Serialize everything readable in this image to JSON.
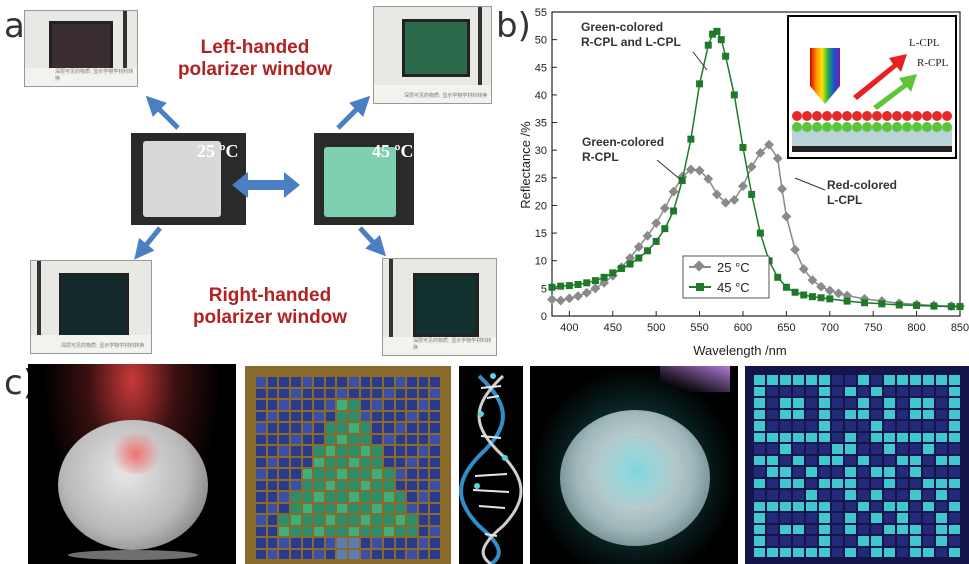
{
  "panel_a": {
    "letter": "a)",
    "left_label_line1": "Left-handed",
    "left_label_line2": "polarizer window",
    "right_label_line1": "Right-handed",
    "right_label_line2": "polarizer window",
    "temp_25": "25 ºC",
    "temp_45": "45 ºC",
    "caption_text": "深层可见的物质: 显示学物学材料转换"
  },
  "panel_b": {
    "letter": "b)",
    "annotation_green_both_line1": "Green-colored",
    "annotation_green_both_line2": "R-CPL and L-CPL",
    "annotation_green_r_line1": "Green-colored",
    "annotation_green_r_line2": "R-CPL",
    "annotation_red_l_line1": "Red-colored",
    "annotation_red_l_line2": "L-CPL",
    "inset_l_cpl": "L-CPL",
    "inset_r_cpl": "R-CPL"
  },
  "panel_c": {
    "letter": "c)"
  },
  "colors": {
    "series_25": "#8a8a8a",
    "series_45": "#1e7a2a",
    "arrow_blue": "#4a7fc4",
    "label_red": "#b22222"
  },
  "chart_data": {
    "type": "line",
    "xlabel": "Wavelength /nm",
    "ylabel": "Reflectance /%",
    "xlim": [
      380,
      850
    ],
    "ylim": [
      0,
      55
    ],
    "xticks": [
      400,
      450,
      500,
      550,
      600,
      650,
      700,
      750,
      800,
      850
    ],
    "yticks": [
      0,
      5,
      10,
      15,
      20,
      25,
      30,
      35,
      40,
      45,
      50,
      55
    ],
    "legend_position": "bottom-left",
    "grid": false,
    "series": [
      {
        "name": "25 °C",
        "marker": "diamond",
        "points": [
          [
            380,
            3
          ],
          [
            390,
            2.8
          ],
          [
            400,
            3.2
          ],
          [
            410,
            3.6
          ],
          [
            420,
            4.2
          ],
          [
            430,
            5
          ],
          [
            440,
            6
          ],
          [
            450,
            7.3
          ],
          [
            460,
            8.8
          ],
          [
            470,
            10.5
          ],
          [
            480,
            12.5
          ],
          [
            490,
            14.5
          ],
          [
            500,
            16.8
          ],
          [
            510,
            19.5
          ],
          [
            520,
            22.5
          ],
          [
            530,
            25.2
          ],
          [
            540,
            26.5
          ],
          [
            550,
            26.3
          ],
          [
            560,
            24.8
          ],
          [
            570,
            22
          ],
          [
            580,
            20.5
          ],
          [
            590,
            21
          ],
          [
            600,
            23.5
          ],
          [
            610,
            27
          ],
          [
            620,
            29.5
          ],
          [
            630,
            31
          ],
          [
            640,
            28.5
          ],
          [
            645,
            23
          ],
          [
            650,
            18
          ],
          [
            660,
            12
          ],
          [
            670,
            8.5
          ],
          [
            680,
            6.5
          ],
          [
            690,
            5.3
          ],
          [
            700,
            4.6
          ],
          [
            710,
            4.1
          ],
          [
            720,
            3.7
          ],
          [
            740,
            3.1
          ],
          [
            760,
            2.7
          ],
          [
            780,
            2.3
          ],
          [
            800,
            2.1
          ],
          [
            820,
            1.9
          ],
          [
            840,
            1.8
          ],
          [
            850,
            1.8
          ]
        ]
      },
      {
        "name": "45 °C",
        "marker": "square",
        "points": [
          [
            380,
            5.2
          ],
          [
            390,
            5.4
          ],
          [
            400,
            5.5
          ],
          [
            410,
            5.7
          ],
          [
            420,
            6
          ],
          [
            430,
            6.4
          ],
          [
            440,
            7
          ],
          [
            450,
            7.8
          ],
          [
            460,
            8.6
          ],
          [
            470,
            9.4
          ],
          [
            480,
            10.5
          ],
          [
            490,
            11.8
          ],
          [
            500,
            13.5
          ],
          [
            510,
            15.8
          ],
          [
            520,
            19
          ],
          [
            530,
            24.5
          ],
          [
            540,
            32
          ],
          [
            550,
            42
          ],
          [
            560,
            49
          ],
          [
            565,
            51
          ],
          [
            570,
            51.5
          ],
          [
            575,
            50
          ],
          [
            580,
            47
          ],
          [
            590,
            40
          ],
          [
            600,
            30.5
          ],
          [
            610,
            22
          ],
          [
            620,
            15
          ],
          [
            630,
            10
          ],
          [
            640,
            7
          ],
          [
            650,
            5.2
          ],
          [
            660,
            4.3
          ],
          [
            670,
            3.8
          ],
          [
            680,
            3.5
          ],
          [
            690,
            3.3
          ],
          [
            700,
            3.1
          ],
          [
            720,
            2.7
          ],
          [
            740,
            2.4
          ],
          [
            760,
            2.2
          ],
          [
            780,
            2
          ],
          [
            800,
            1.9
          ],
          [
            820,
            1.8
          ],
          [
            840,
            1.7
          ],
          [
            850,
            1.7
          ]
        ]
      }
    ]
  }
}
